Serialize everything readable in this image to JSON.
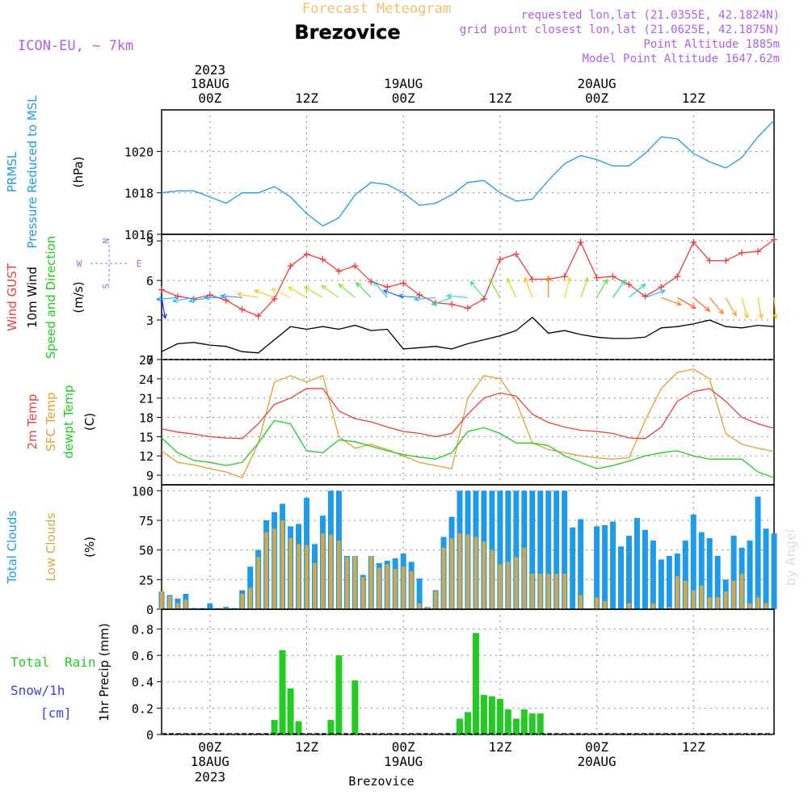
{
  "header": {
    "subtitle_top": "Forecast Meteogram",
    "location": "Brezovice",
    "model": "ICON-EU, ~ 7km",
    "requested": "requested lon,lat (21.0355E, 42.1824N)",
    "gridpoint": "grid point closest lon,lat (21.0625E, 42.1875N)",
    "point_alt": "Point Altitude 1885m",
    "model_alt": "Model Point Altitude 1647.62m",
    "footer": "Brezovice",
    "watermark": "by Angel"
  },
  "time_axis": {
    "top_year": "2023",
    "ticks": [
      {
        "hour": 6,
        "line1": "18AUG",
        "line2": "00Z"
      },
      {
        "hour": 18,
        "line1": "",
        "line2": "12Z"
      },
      {
        "hour": 30,
        "line1": "19AUG",
        "line2": "00Z"
      },
      {
        "hour": 42,
        "line1": "",
        "line2": "12Z"
      },
      {
        "hour": 54,
        "line1": "20AUG",
        "line2": "00Z"
      },
      {
        "hour": 66,
        "line1": "",
        "line2": "12Z"
      }
    ],
    "bottom_ticks": [
      {
        "hour": 6,
        "line1": "00Z",
        "line2": "18AUG",
        "line3": "2023"
      },
      {
        "hour": 18,
        "line1": "12Z",
        "line2": "",
        "line3": ""
      },
      {
        "hour": 30,
        "line1": "00Z",
        "line2": "19AUG",
        "line3": ""
      },
      {
        "hour": 42,
        "line1": "12Z",
        "line2": "",
        "line3": ""
      },
      {
        "hour": 54,
        "line1": "00Z",
        "line2": "20AUG",
        "line3": ""
      },
      {
        "hour": 66,
        "line1": "12Z",
        "line2": "",
        "line3": ""
      }
    ],
    "range_hours": [
      0,
      76
    ]
  },
  "colors": {
    "pressure": "#1e9be8",
    "gust": "#e84040",
    "wind": "#000000",
    "temp": "#e84040",
    "sfc": "#e0a030",
    "dewpt": "#20cc20",
    "total_cloud": "#1e9be8",
    "low_cloud": "#d4a84a",
    "rain": "#22cc22",
    "snow": "#4040e0",
    "label_purple": "#b060e0",
    "label_orange": "#f0c070"
  },
  "panel_labels": {
    "pressure": [
      "PRMSL",
      "Pressure Reduced to MSL",
      "(hPa)"
    ],
    "wind": [
      "Wind GUST",
      "10m Wind",
      "Speed and Direction",
      "(m/s)"
    ],
    "compass": [
      "N",
      "W",
      "E",
      "S"
    ],
    "temp": [
      "2m Temp",
      "SFC Temp",
      "dewpt Temp",
      "(C)"
    ],
    "clouds": [
      "Total Clouds",
      "Low Clouds",
      "(%)"
    ],
    "precip": [
      "Total",
      "Rain",
      "Snow/1h",
      "[cm]",
      "1hr Precip (mm)"
    ]
  },
  "chart_data": [
    {
      "type": "line",
      "title": "",
      "ylabel": "(hPa)",
      "ylim": [
        1016,
        1022
      ],
      "yticks": [
        1016,
        1018,
        1020
      ],
      "x": [
        0,
        2,
        4,
        6,
        8,
        10,
        12,
        14,
        16,
        18,
        20,
        22,
        24,
        26,
        28,
        30,
        32,
        34,
        36,
        38,
        40,
        42,
        44,
        46,
        48,
        50,
        52,
        54,
        56,
        58,
        60,
        62,
        64,
        66,
        68,
        70,
        72,
        74,
        76
      ],
      "series": [
        {
          "name": "PRMSL",
          "values": [
            1018.0,
            1018.1,
            1018.1,
            1017.8,
            1017.5,
            1018.0,
            1018.0,
            1018.3,
            1017.8,
            1017.0,
            1016.4,
            1016.8,
            1017.9,
            1018.5,
            1018.4,
            1018.0,
            1017.4,
            1017.5,
            1017.9,
            1018.5,
            1018.6,
            1018.0,
            1017.6,
            1017.7,
            1018.6,
            1019.4,
            1019.8,
            1019.6,
            1019.3,
            1019.3,
            1019.9,
            1020.7,
            1020.6,
            1019.9,
            1019.5,
            1019.2,
            1019.7,
            1020.7,
            1021.5
          ]
        }
      ]
    },
    {
      "type": "line",
      "title": "",
      "ylabel": "(m/s)",
      "ylim": [
        0,
        9.5
      ],
      "yticks": [
        0,
        3,
        6,
        9
      ],
      "x": [
        0,
        2,
        4,
        6,
        8,
        10,
        12,
        14,
        16,
        18,
        20,
        22,
        24,
        26,
        28,
        30,
        32,
        34,
        36,
        38,
        40,
        42,
        44,
        46,
        48,
        50,
        52,
        54,
        56,
        58,
        60,
        62,
        64,
        66,
        68,
        70,
        72,
        74,
        76
      ],
      "series": [
        {
          "name": "Wind GUST",
          "values": [
            5.3,
            4.8,
            4.6,
            4.9,
            4.5,
            3.8,
            3.3,
            4.6,
            7.1,
            8.0,
            7.6,
            6.7,
            7.1,
            5.9,
            5.5,
            5.8,
            4.9,
            4.3,
            4.2,
            3.9,
            4.6,
            7.6,
            8.0,
            6.1,
            6.1,
            6.3,
            8.9,
            6.2,
            6.3,
            5.7,
            4.8,
            5.5,
            6.3,
            8.9,
            7.5,
            7.5,
            8.1,
            8.2,
            9.1
          ]
        },
        {
          "name": "10m Wind",
          "values": [
            0.6,
            1.2,
            1.3,
            1.1,
            1.0,
            0.6,
            0.5,
            1.5,
            2.5,
            2.3,
            2.5,
            2.3,
            2.6,
            2.2,
            2.3,
            0.8,
            0.9,
            1.0,
            0.8,
            1.2,
            1.5,
            1.8,
            2.2,
            3.2,
            2.0,
            2.2,
            1.9,
            1.7,
            1.6,
            1.6,
            1.7,
            2.4,
            2.5,
            2.7,
            3.0,
            2.5,
            2.4,
            2.6,
            2.5
          ]
        }
      ],
      "direction_arrows": {
        "hours": [
          0,
          2,
          4,
          6,
          8,
          10,
          12,
          14,
          16,
          18,
          20,
          22,
          24,
          26,
          28,
          30,
          32,
          34,
          36,
          38,
          40,
          42,
          44,
          46,
          48,
          50,
          52,
          54,
          56,
          58,
          60,
          62,
          64,
          66,
          68,
          70,
          72,
          74,
          76
        ],
        "from_deg": [
          350,
          85,
          80,
          80,
          90,
          95,
          100,
          110,
          115,
          120,
          120,
          125,
          130,
          135,
          140,
          110,
          95,
          85,
          70,
          95,
          140,
          150,
          155,
          160,
          180,
          195,
          200,
          210,
          215,
          230,
          250,
          290,
          300,
          310,
          320,
          330,
          345,
          350,
          355
        ],
        "colors": [
          "#2020ff",
          "#20a0ff",
          "#20c0ff",
          "#20c0ff",
          "#20a0ff",
          "#20a0ff",
          "#ffc020",
          "#ffc020",
          "#ffd040",
          "#e0e020",
          "#c0e020",
          "#a0e040",
          "#80e040",
          "#40e060",
          "#30d0d0",
          "#2060ff",
          "#2080ff",
          "#20c0ff",
          "#20e0c0",
          "#20e0c0",
          "#40e080",
          "#80e040",
          "#c0e020",
          "#ffc020",
          "#ff8020",
          "#e0e020",
          "#a0e040",
          "#60e040",
          "#30d0a0",
          "#20d0d0",
          "#20c0ff",
          "#ff8020",
          "#ff6020",
          "#ff6020",
          "#ff8020",
          "#ffa020",
          "#ffc020",
          "#ffc020",
          "#ffc020"
        ]
      }
    },
    {
      "type": "line",
      "title": "",
      "ylabel": "(C)",
      "ylim": [
        7.5,
        27
      ],
      "yticks": [
        9,
        12,
        15,
        18,
        21,
        24,
        27
      ],
      "x": [
        0,
        2,
        4,
        6,
        8,
        10,
        12,
        14,
        16,
        18,
        20,
        22,
        24,
        26,
        28,
        30,
        32,
        34,
        36,
        38,
        40,
        42,
        44,
        46,
        48,
        50,
        52,
        54,
        56,
        58,
        60,
        62,
        64,
        66,
        68,
        70,
        72,
        74,
        76
      ],
      "series": [
        {
          "name": "2m Temp",
          "values": [
            16.2,
            15.7,
            15.4,
            15.0,
            14.8,
            14.7,
            17.0,
            20.0,
            21.0,
            22.5,
            22.5,
            19.0,
            17.8,
            17.3,
            16.5,
            15.8,
            15.5,
            15.0,
            15.5,
            18.5,
            21.0,
            21.8,
            21.3,
            18.5,
            17.2,
            16.5,
            16.0,
            15.8,
            15.5,
            14.8,
            14.7,
            16.5,
            20.5,
            22.0,
            22.5,
            20.5,
            18.0,
            17.0,
            16.3
          ]
        },
        {
          "name": "SFC Temp",
          "values": [
            12.8,
            11.0,
            10.6,
            10.0,
            9.5,
            8.6,
            14.0,
            23.5,
            24.5,
            23.5,
            24.5,
            15.0,
            13.2,
            13.8,
            13.0,
            12.0,
            11.0,
            10.5,
            10.0,
            21.0,
            24.5,
            24.0,
            20.5,
            14.0,
            13.0,
            12.5,
            12.0,
            11.7,
            11.5,
            11.7,
            17.5,
            22.5,
            25.0,
            25.5,
            24.0,
            15.5,
            13.8,
            13.2,
            12.7
          ]
        },
        {
          "name": "dewpt Temp",
          "values": [
            14.8,
            12.5,
            11.3,
            11.0,
            10.5,
            11.0,
            14.0,
            17.5,
            17.0,
            12.8,
            12.5,
            14.5,
            14.2,
            13.5,
            12.8,
            12.2,
            11.8,
            11.5,
            12.5,
            15.8,
            16.4,
            15.5,
            14.0,
            14.0,
            13.6,
            12.0,
            11.0,
            10.0,
            10.5,
            11.2,
            12.0,
            12.5,
            12.8,
            12.0,
            11.5,
            11.5,
            11.5,
            9.5,
            8.6
          ]
        }
      ]
    },
    {
      "type": "bar",
      "title": "",
      "ylabel": "(%)",
      "ylim": [
        0,
        105
      ],
      "yticks": [
        0,
        25,
        50,
        75,
        100
      ],
      "x": [
        0,
        1,
        2,
        3,
        4,
        5,
        6,
        7,
        8,
        9,
        10,
        11,
        12,
        13,
        14,
        15,
        16,
        17,
        18,
        19,
        20,
        21,
        22,
        23,
        24,
        25,
        26,
        27,
        28,
        29,
        30,
        31,
        32,
        33,
        34,
        35,
        36,
        37,
        38,
        39,
        40,
        41,
        42,
        43,
        44,
        45,
        46,
        47,
        48,
        49,
        50,
        51,
        52,
        53,
        54,
        55,
        56,
        57,
        58,
        59,
        60,
        61,
        62,
        63,
        64,
        65,
        66,
        67,
        68,
        69,
        70,
        71,
        72,
        73,
        74,
        75,
        76
      ],
      "series": [
        {
          "name": "Total Clouds",
          "values": [
            15,
            12,
            9,
            13,
            1,
            1,
            5,
            1,
            2,
            1,
            16,
            36,
            50,
            75,
            82,
            89,
            70,
            72,
            94,
            55,
            79,
            100,
            100,
            45,
            45,
            29,
            45,
            39,
            41,
            43,
            47,
            40,
            26,
            2,
            16,
            61,
            78,
            100,
            100,
            100,
            100,
            100,
            100,
            100,
            100,
            100,
            100,
            100,
            100,
            100,
            100,
            69,
            76,
            0,
            70,
            71,
            74,
            53,
            62,
            77,
            67,
            58,
            42,
            45,
            47,
            58,
            80,
            65,
            60,
            45,
            25,
            62,
            52,
            58,
            95,
            68,
            64
          ]
        },
        {
          "name": "Low Clouds",
          "values": [
            15,
            11,
            5,
            8,
            0,
            0,
            0,
            1,
            1,
            0,
            13,
            18,
            44,
            65,
            68,
            75,
            60,
            55,
            54,
            39,
            64,
            63,
            58,
            44,
            45,
            27,
            45,
            35,
            38,
            34,
            36,
            32,
            5,
            2,
            15,
            52,
            60,
            64,
            63,
            61,
            57,
            50,
            38,
            40,
            44,
            52,
            30,
            30,
            30,
            30,
            30,
            0,
            12,
            0,
            10,
            7,
            0,
            0,
            5,
            0,
            0,
            5,
            0,
            2,
            28,
            24,
            16,
            20,
            10,
            10,
            15,
            24,
            30,
            5,
            10,
            5,
            0
          ]
        }
      ]
    },
    {
      "type": "bar",
      "title": "",
      "ylabel": "1hr Precip (mm)",
      "ylim": [
        0,
        0.95
      ],
      "yticks": [
        0,
        0.2,
        0.4,
        0.6,
        0.8
      ],
      "bars": [
        {
          "x": 14,
          "value": 0.11
        },
        {
          "x": 15,
          "value": 0.64
        },
        {
          "x": 16,
          "value": 0.35
        },
        {
          "x": 17,
          "value": 0.1
        },
        {
          "x": 21,
          "value": 0.11
        },
        {
          "x": 22,
          "value": 0.6
        },
        {
          "x": 24,
          "value": 0.41
        },
        {
          "x": 37,
          "value": 0.12
        },
        {
          "x": 38,
          "value": 0.17
        },
        {
          "x": 39,
          "value": 0.77
        },
        {
          "x": 40,
          "value": 0.3
        },
        {
          "x": 41,
          "value": 0.29
        },
        {
          "x": 42,
          "value": 0.27
        },
        {
          "x": 43,
          "value": 0.19
        },
        {
          "x": 44,
          "value": 0.12
        },
        {
          "x": 45,
          "value": 0.19
        },
        {
          "x": 46,
          "value": 0.16
        },
        {
          "x": 47,
          "value": 0.16
        }
      ],
      "series": [
        {
          "name": "Total Rain"
        },
        {
          "name": "Snow/1h"
        }
      ]
    }
  ]
}
